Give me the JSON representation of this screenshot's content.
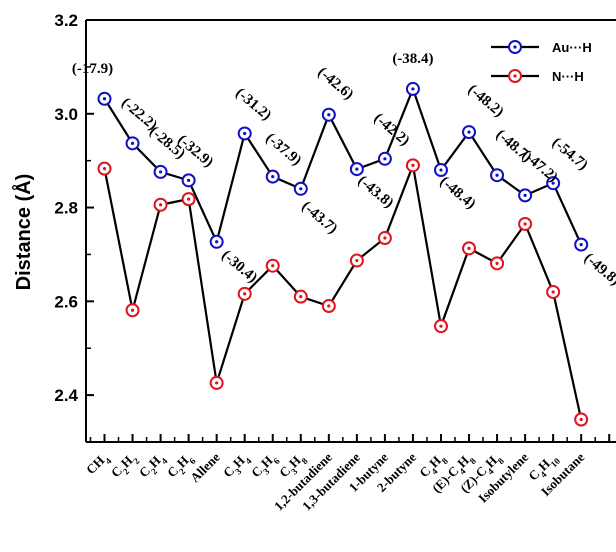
{
  "chart_data": {
    "type": "line",
    "ylabel": "Distance (Å)",
    "ylim": [
      2.3,
      3.2
    ],
    "yticks": [
      "2.4",
      "2.6",
      "2.8",
      "3.0",
      "3.2"
    ],
    "categories": [
      [
        {
          "t": "CH"
        },
        {
          "t": "4",
          "s": "sub"
        }
      ],
      [
        {
          "t": "C"
        },
        {
          "t": "2",
          "s": "sub"
        },
        {
          "t": "H"
        },
        {
          "t": "2",
          "s": "sub"
        }
      ],
      [
        {
          "t": "C"
        },
        {
          "t": "2",
          "s": "sub"
        },
        {
          "t": "H"
        },
        {
          "t": "4",
          "s": "sub"
        }
      ],
      [
        {
          "t": "C"
        },
        {
          "t": "2",
          "s": "sub"
        },
        {
          "t": "H"
        },
        {
          "t": "6",
          "s": "sub"
        }
      ],
      [
        {
          "t": "Allene"
        }
      ],
      [
        {
          "t": "C"
        },
        {
          "t": "3",
          "s": "sub"
        },
        {
          "t": "H"
        },
        {
          "t": "4",
          "s": "sub"
        }
      ],
      [
        {
          "t": "C"
        },
        {
          "t": "3",
          "s": "sub"
        },
        {
          "t": "H"
        },
        {
          "t": "6",
          "s": "sub"
        }
      ],
      [
        {
          "t": "C"
        },
        {
          "t": "3",
          "s": "sub"
        },
        {
          "t": "H"
        },
        {
          "t": "8",
          "s": "sub"
        }
      ],
      [
        {
          "t": "1,2-butadiene"
        }
      ],
      [
        {
          "t": "1,3-butadiene"
        }
      ],
      [
        {
          "t": "1-butyne"
        }
      ],
      [
        {
          "t": "2-butyne"
        }
      ],
      [
        {
          "t": "C"
        },
        {
          "t": "4",
          "s": "sub"
        },
        {
          "t": "H"
        },
        {
          "t": "8",
          "s": "sub"
        }
      ],
      [
        {
          "t": "(E)-C"
        },
        {
          "t": "4",
          "s": "sub"
        },
        {
          "t": "H"
        },
        {
          "t": "8",
          "s": "sub"
        }
      ],
      [
        {
          "t": "(Z)-C"
        },
        {
          "t": "4",
          "s": "sub"
        },
        {
          "t": "H"
        },
        {
          "t": "8",
          "s": "sub"
        }
      ],
      [
        {
          "t": "Isobutylene"
        }
      ],
      [
        {
          "t": "C"
        },
        {
          "t": "4",
          "s": "sub"
        },
        {
          "t": "H"
        },
        {
          "t": "10",
          "s": "sub"
        }
      ],
      [
        {
          "t": "Isobutane"
        }
      ]
    ],
    "series": [
      {
        "name": "Au···H",
        "color": "#1010c8",
        "values": [
          3.032,
          2.937,
          2.876,
          2.858,
          2.727,
          2.958,
          2.866,
          2.84,
          2.998,
          2.882,
          2.904,
          3.053,
          2.88,
          2.961,
          2.869,
          2.826,
          2.852,
          2.721
        ]
      },
      {
        "name": "N···H",
        "color": "#e0141e",
        "values": [
          2.883,
          2.581,
          2.806,
          2.818,
          2.426,
          2.616,
          2.676,
          2.61,
          2.59,
          2.687,
          2.735,
          2.89,
          2.547,
          2.713,
          2.681,
          2.765,
          2.62,
          2.348
        ]
      }
    ],
    "annotations": [
      "(-17.9)",
      "(-22.2)",
      "(-28.5)",
      "(-32.9)",
      "(-30.4)",
      "(-31.2)",
      "(-37.9)",
      "(-43.7)",
      "(-42.6)",
      "(-43.8)",
      "(-42.2)",
      "(-38.4)",
      "(-48.4)",
      "(-48.2)",
      "(-48.7)",
      "(-47.2)",
      "(-54.7)",
      "(-49.8)"
    ],
    "legend_position": "top-right",
    "grid": false
  }
}
